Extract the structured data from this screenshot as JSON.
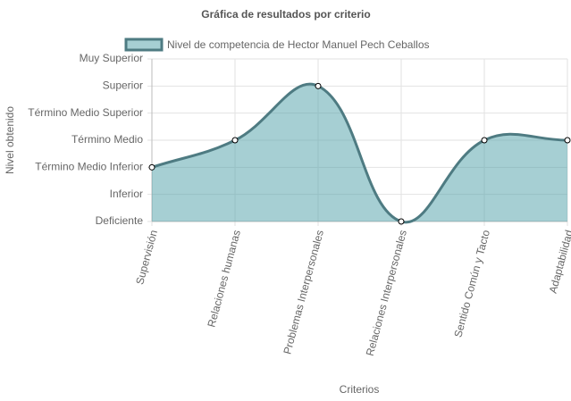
{
  "chart_data": {
    "type": "line",
    "title": "Gráfica de resultados por criterio",
    "x_label": "Criterios",
    "y_label": "Nivel obtenido",
    "categories": [
      "Supervisión",
      "Relaciones humanas",
      "Problemas Interpersonales",
      "Relaciones Interpersonales",
      "Sentido Común y Tacto",
      "Adaptabilidad"
    ],
    "series": [
      {
        "name": "Nivel de competencia de Hector Manuel Pech Ceballos",
        "color": "#4e7b82",
        "fill_color": "rgba(78,160,168,0.5)",
        "values": [
          2,
          3,
          5,
          0,
          3,
          3
        ]
      }
    ],
    "ylim": [
      0,
      6
    ],
    "yticks": [
      {
        "value": 0,
        "label": "Deficiente"
      },
      {
        "value": 1,
        "label": "Inferior"
      },
      {
        "value": 2,
        "label": "Término Medio Inferior"
      },
      {
        "value": 3,
        "label": "Término Medio"
      },
      {
        "value": 4,
        "label": "Término Medio Superior"
      },
      {
        "value": 5,
        "label": "Superior"
      },
      {
        "value": 6,
        "label": "Muy Superior"
      }
    ],
    "grid": true,
    "legend": "top"
  }
}
